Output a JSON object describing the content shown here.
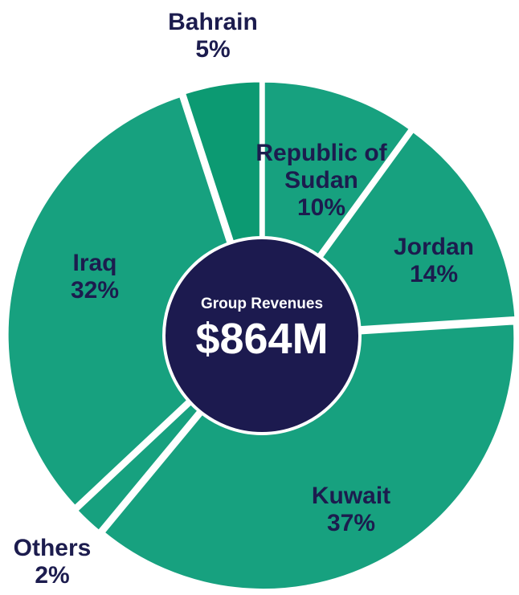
{
  "chart_data": {
    "type": "pie",
    "center_title": "Group Revenues",
    "center_text": "$864M",
    "categories": [
      "Republic of Sudan",
      "Jordan",
      "Kuwait",
      "Others",
      "Iraq",
      "Bahrain"
    ],
    "values": [
      10,
      14,
      37,
      2,
      32,
      5
    ],
    "value_labels": [
      "10%",
      "14%",
      "37%",
      "2%",
      "32%",
      "5%"
    ],
    "colors": [
      "#17a17f",
      "#17a17f",
      "#17a17f",
      "#17a17f",
      "#17a17f",
      "#0c9a72"
    ]
  }
}
